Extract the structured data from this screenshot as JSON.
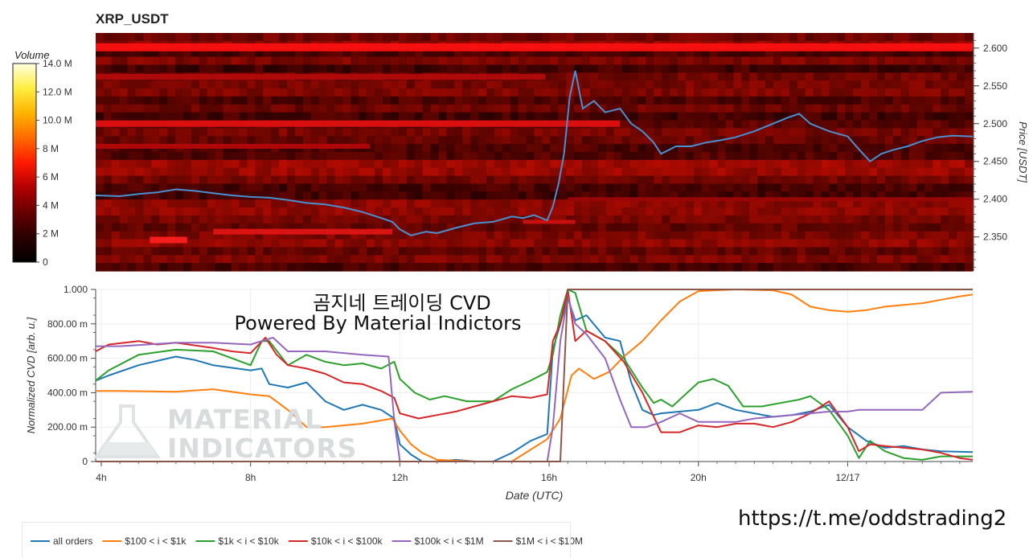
{
  "header": {
    "title": "XRP_USDT"
  },
  "overlay": {
    "line1": "곰지네 트레이딩 CVD",
    "line2": "Powered By Material Indictors",
    "url": "https://t.me/oddstrading2",
    "watermark1": "MATERIAL",
    "watermark2": "INDICATORS"
  },
  "colorbar": {
    "title": "Volume",
    "ticks": [
      "0",
      "2 M",
      "4 M",
      "6 M",
      "8 M",
      "10.0 M",
      "12.0 M",
      "14.0 M"
    ],
    "colors": [
      "#000000",
      "#2a0000",
      "#660000",
      "#b00000",
      "#ff1a00",
      "#ff6a00",
      "#ffb300",
      "#ffee40",
      "#ffffe0"
    ]
  },
  "chart_data": [
    {
      "type": "heatmap",
      "title": "XRP_USDT",
      "ylabel": "Price [USDT]",
      "ylim": [
        2.305,
        2.62
      ],
      "yticks": [
        2.35,
        2.4,
        2.45,
        2.5,
        2.55,
        2.6
      ],
      "ytick_labels": [
        "2.350",
        "2.400",
        "2.450",
        "2.500",
        "2.550",
        "2.600"
      ],
      "xlim_hours": [
        3.85,
        27.35
      ],
      "price_line": {
        "color": "#4a8fd0",
        "x_hours": [
          3.85,
          4.5,
          5.0,
          5.5,
          6.0,
          6.5,
          7.0,
          7.5,
          8.0,
          8.5,
          9.0,
          9.5,
          10.0,
          10.5,
          11.0,
          11.5,
          11.8,
          12.0,
          12.3,
          12.7,
          13.0,
          13.5,
          14.0,
          14.5,
          15.0,
          15.3,
          15.6,
          15.95,
          16.1,
          16.25,
          16.4,
          16.5,
          16.55,
          16.7,
          16.9,
          17.2,
          17.5,
          17.9,
          18.2,
          18.5,
          18.8,
          19.0,
          19.4,
          19.8,
          20.2,
          20.6,
          21.0,
          21.5,
          22.0,
          22.4,
          22.7,
          23.0,
          23.5,
          24.0,
          24.3,
          24.6,
          24.9,
          25.2,
          25.6,
          26.0,
          26.4,
          26.8,
          27.35
        ],
        "values": [
          2.405,
          2.404,
          2.407,
          2.409,
          2.413,
          2.411,
          2.408,
          2.405,
          2.403,
          2.402,
          2.399,
          2.395,
          2.393,
          2.389,
          2.383,
          2.375,
          2.37,
          2.36,
          2.352,
          2.357,
          2.355,
          2.362,
          2.368,
          2.37,
          2.377,
          2.375,
          2.379,
          2.372,
          2.39,
          2.42,
          2.46,
          2.51,
          2.535,
          2.57,
          2.52,
          2.53,
          2.515,
          2.52,
          2.5,
          2.49,
          2.475,
          2.46,
          2.47,
          2.47,
          2.475,
          2.478,
          2.482,
          2.49,
          2.5,
          2.508,
          2.513,
          2.5,
          2.49,
          2.483,
          2.466,
          2.45,
          2.46,
          2.465,
          2.47,
          2.477,
          2.482,
          2.484,
          2.483
        ]
      }
    },
    {
      "type": "line",
      "xlabel": "Date (UTC)",
      "ylabel": "Normalized CVD [arb. u.]",
      "xlim_hours": [
        3.85,
        27.35
      ],
      "ylim": [
        0,
        1000
      ],
      "xticks": [
        4,
        8,
        12,
        16,
        20,
        24
      ],
      "xtick_labels": [
        "4h",
        "8h",
        "12h",
        "16h",
        "20h",
        "12/17"
      ],
      "yticks": [
        0,
        200,
        400,
        600,
        800,
        1000
      ],
      "ytick_labels": [
        "0",
        "200.00 m",
        "400.00 m",
        "600.00 m",
        "800.00 m",
        "1.000"
      ],
      "series": [
        {
          "name": "all orders",
          "color": "#1f77b4",
          "x": [
            3.85,
            4.2,
            5.0,
            6.0,
            6.5,
            7.0,
            8.0,
            8.3,
            8.5,
            9.0,
            9.5,
            10.0,
            10.5,
            11.0,
            11.5,
            11.85,
            12.0,
            12.3,
            12.6,
            13.0,
            13.5,
            14.0,
            14.5,
            15.0,
            15.5,
            15.95,
            16.1,
            16.3,
            16.5,
            16.7,
            17.0,
            17.5,
            17.9,
            18.2,
            18.5,
            18.8,
            19.0,
            19.5,
            20.0,
            20.5,
            21.0,
            21.5,
            22.0,
            22.5,
            23.0,
            23.5,
            24.0,
            24.5,
            25.0,
            25.5,
            26.0,
            26.5,
            27.35
          ],
          "values": [
            470,
            500,
            560,
            610,
            590,
            560,
            530,
            540,
            450,
            430,
            460,
            350,
            300,
            330,
            300,
            250,
            100,
            40,
            0,
            0,
            10,
            0,
            0,
            50,
            120,
            160,
            650,
            800,
            950,
            820,
            850,
            720,
            700,
            460,
            300,
            270,
            280,
            290,
            300,
            340,
            300,
            280,
            260,
            270,
            290,
            330,
            200,
            120,
            80,
            90,
            70,
            60,
            55
          ]
        },
        {
          "name": "$100 < i < $1k",
          "color": "#ff7f0e",
          "x": [
            3.85,
            4.5,
            6.0,
            7.0,
            8.0,
            8.5,
            9.0,
            9.5,
            10.0,
            11.0,
            11.8,
            12.0,
            12.3,
            12.6,
            13.0,
            14.0,
            15.0,
            15.95,
            16.3,
            16.6,
            16.8,
            17.2,
            17.6,
            18.0,
            18.5,
            19.0,
            19.5,
            20.0,
            21.0,
            22.0,
            22.5,
            23.0,
            23.5,
            24.0,
            24.5,
            25.0,
            26.0,
            26.5,
            27.0,
            27.35
          ],
          "values": [
            410,
            410,
            405,
            420,
            390,
            380,
            300,
            200,
            200,
            220,
            250,
            180,
            100,
            50,
            10,
            0,
            0,
            130,
            250,
            500,
            540,
            480,
            520,
            610,
            700,
            820,
            930,
            990,
            1000,
            995,
            970,
            900,
            880,
            870,
            880,
            900,
            920,
            940,
            960,
            970
          ]
        },
        {
          "name": "$1k < i < $10k",
          "color": "#2ca02c",
          "x": [
            3.85,
            4.2,
            5.0,
            6.0,
            7.0,
            7.5,
            8.0,
            8.3,
            8.5,
            9.0,
            9.5,
            10.0,
            10.5,
            11.0,
            11.5,
            11.85,
            12.0,
            12.4,
            12.8,
            13.2,
            13.8,
            14.5,
            15.0,
            15.5,
            15.95,
            16.1,
            16.3,
            16.5,
            16.7,
            17.0,
            17.5,
            18.0,
            18.5,
            18.8,
            19.0,
            19.3,
            19.6,
            20.0,
            20.4,
            20.8,
            21.2,
            21.7,
            22.2,
            22.7,
            23.0,
            23.5,
            24.0,
            24.3,
            24.6,
            25.0,
            25.5,
            26.0,
            26.5,
            27.0,
            27.35
          ],
          "values": [
            470,
            530,
            620,
            650,
            640,
            600,
            560,
            700,
            700,
            560,
            620,
            580,
            560,
            570,
            540,
            580,
            480,
            400,
            360,
            380,
            350,
            350,
            420,
            470,
            520,
            620,
            850,
            1000,
            980,
            760,
            700,
            600,
            430,
            340,
            360,
            320,
            380,
            460,
            480,
            440,
            320,
            320,
            340,
            360,
            380,
            300,
            150,
            20,
            120,
            60,
            20,
            10,
            30,
            30,
            30
          ]
        },
        {
          "name": "$10k < i < $100k",
          "color": "#d62728",
          "x": [
            3.85,
            4.2,
            5.0,
            5.5,
            6.0,
            7.0,
            7.5,
            8.0,
            8.4,
            8.7,
            9.0,
            9.5,
            10.0,
            10.5,
            11.0,
            11.5,
            11.85,
            12.0,
            12.5,
            13.0,
            13.5,
            14.0,
            14.5,
            15.0,
            15.5,
            15.95,
            16.1,
            16.3,
            16.5,
            16.7,
            17.0,
            17.5,
            18.0,
            18.5,
            19.0,
            19.5,
            20.0,
            20.5,
            21.0,
            21.5,
            22.0,
            22.5,
            23.0,
            23.5,
            24.0,
            24.3,
            24.6,
            25.0,
            25.5,
            26.0,
            26.5,
            27.0,
            27.35
          ],
          "values": [
            640,
            680,
            700,
            680,
            690,
            660,
            640,
            630,
            720,
            620,
            560,
            540,
            510,
            460,
            450,
            410,
            370,
            280,
            250,
            270,
            290,
            320,
            350,
            380,
            370,
            390,
            700,
            800,
            1000,
            700,
            760,
            700,
            580,
            400,
            170,
            170,
            210,
            200,
            220,
            220,
            200,
            230,
            280,
            350,
            200,
            60,
            100,
            90,
            80,
            70,
            50,
            20,
            10
          ]
        },
        {
          "name": "$100k < i < $1M",
          "color": "#9467bd",
          "x": [
            3.85,
            4.5,
            6.0,
            7.0,
            8.0,
            8.3,
            8.6,
            9.0,
            10.0,
            11.0,
            11.7,
            11.85,
            12.0,
            12.5,
            13.0,
            14.0,
            15.0,
            15.95,
            16.1,
            16.3,
            16.5,
            16.7,
            17.0,
            17.5,
            17.9,
            18.2,
            18.6,
            19.0,
            19.5,
            20.0,
            20.5,
            21.0,
            21.5,
            22.0,
            22.5,
            23.0,
            23.5,
            24.0,
            24.3,
            24.6,
            25.0,
            25.5,
            26.0,
            26.5,
            27.35
          ],
          "values": [
            670,
            670,
            690,
            690,
            680,
            700,
            720,
            640,
            640,
            620,
            610,
            240,
            0,
            0,
            0,
            0,
            0,
            0,
            200,
            700,
            960,
            800,
            740,
            600,
            360,
            200,
            200,
            230,
            280,
            230,
            230,
            230,
            250,
            260,
            270,
            280,
            290,
            290,
            300,
            300,
            300,
            300,
            300,
            400,
            405
          ]
        },
        {
          "name": "$1M < i < $10M",
          "color": "#8c564b",
          "x": [
            3.85,
            15.95,
            16.0,
            16.3,
            16.5,
            17.0,
            20.0,
            27.35
          ],
          "values": [
            0,
            0,
            0,
            0,
            1000,
            1000,
            1000,
            1000
          ]
        }
      ]
    }
  ]
}
